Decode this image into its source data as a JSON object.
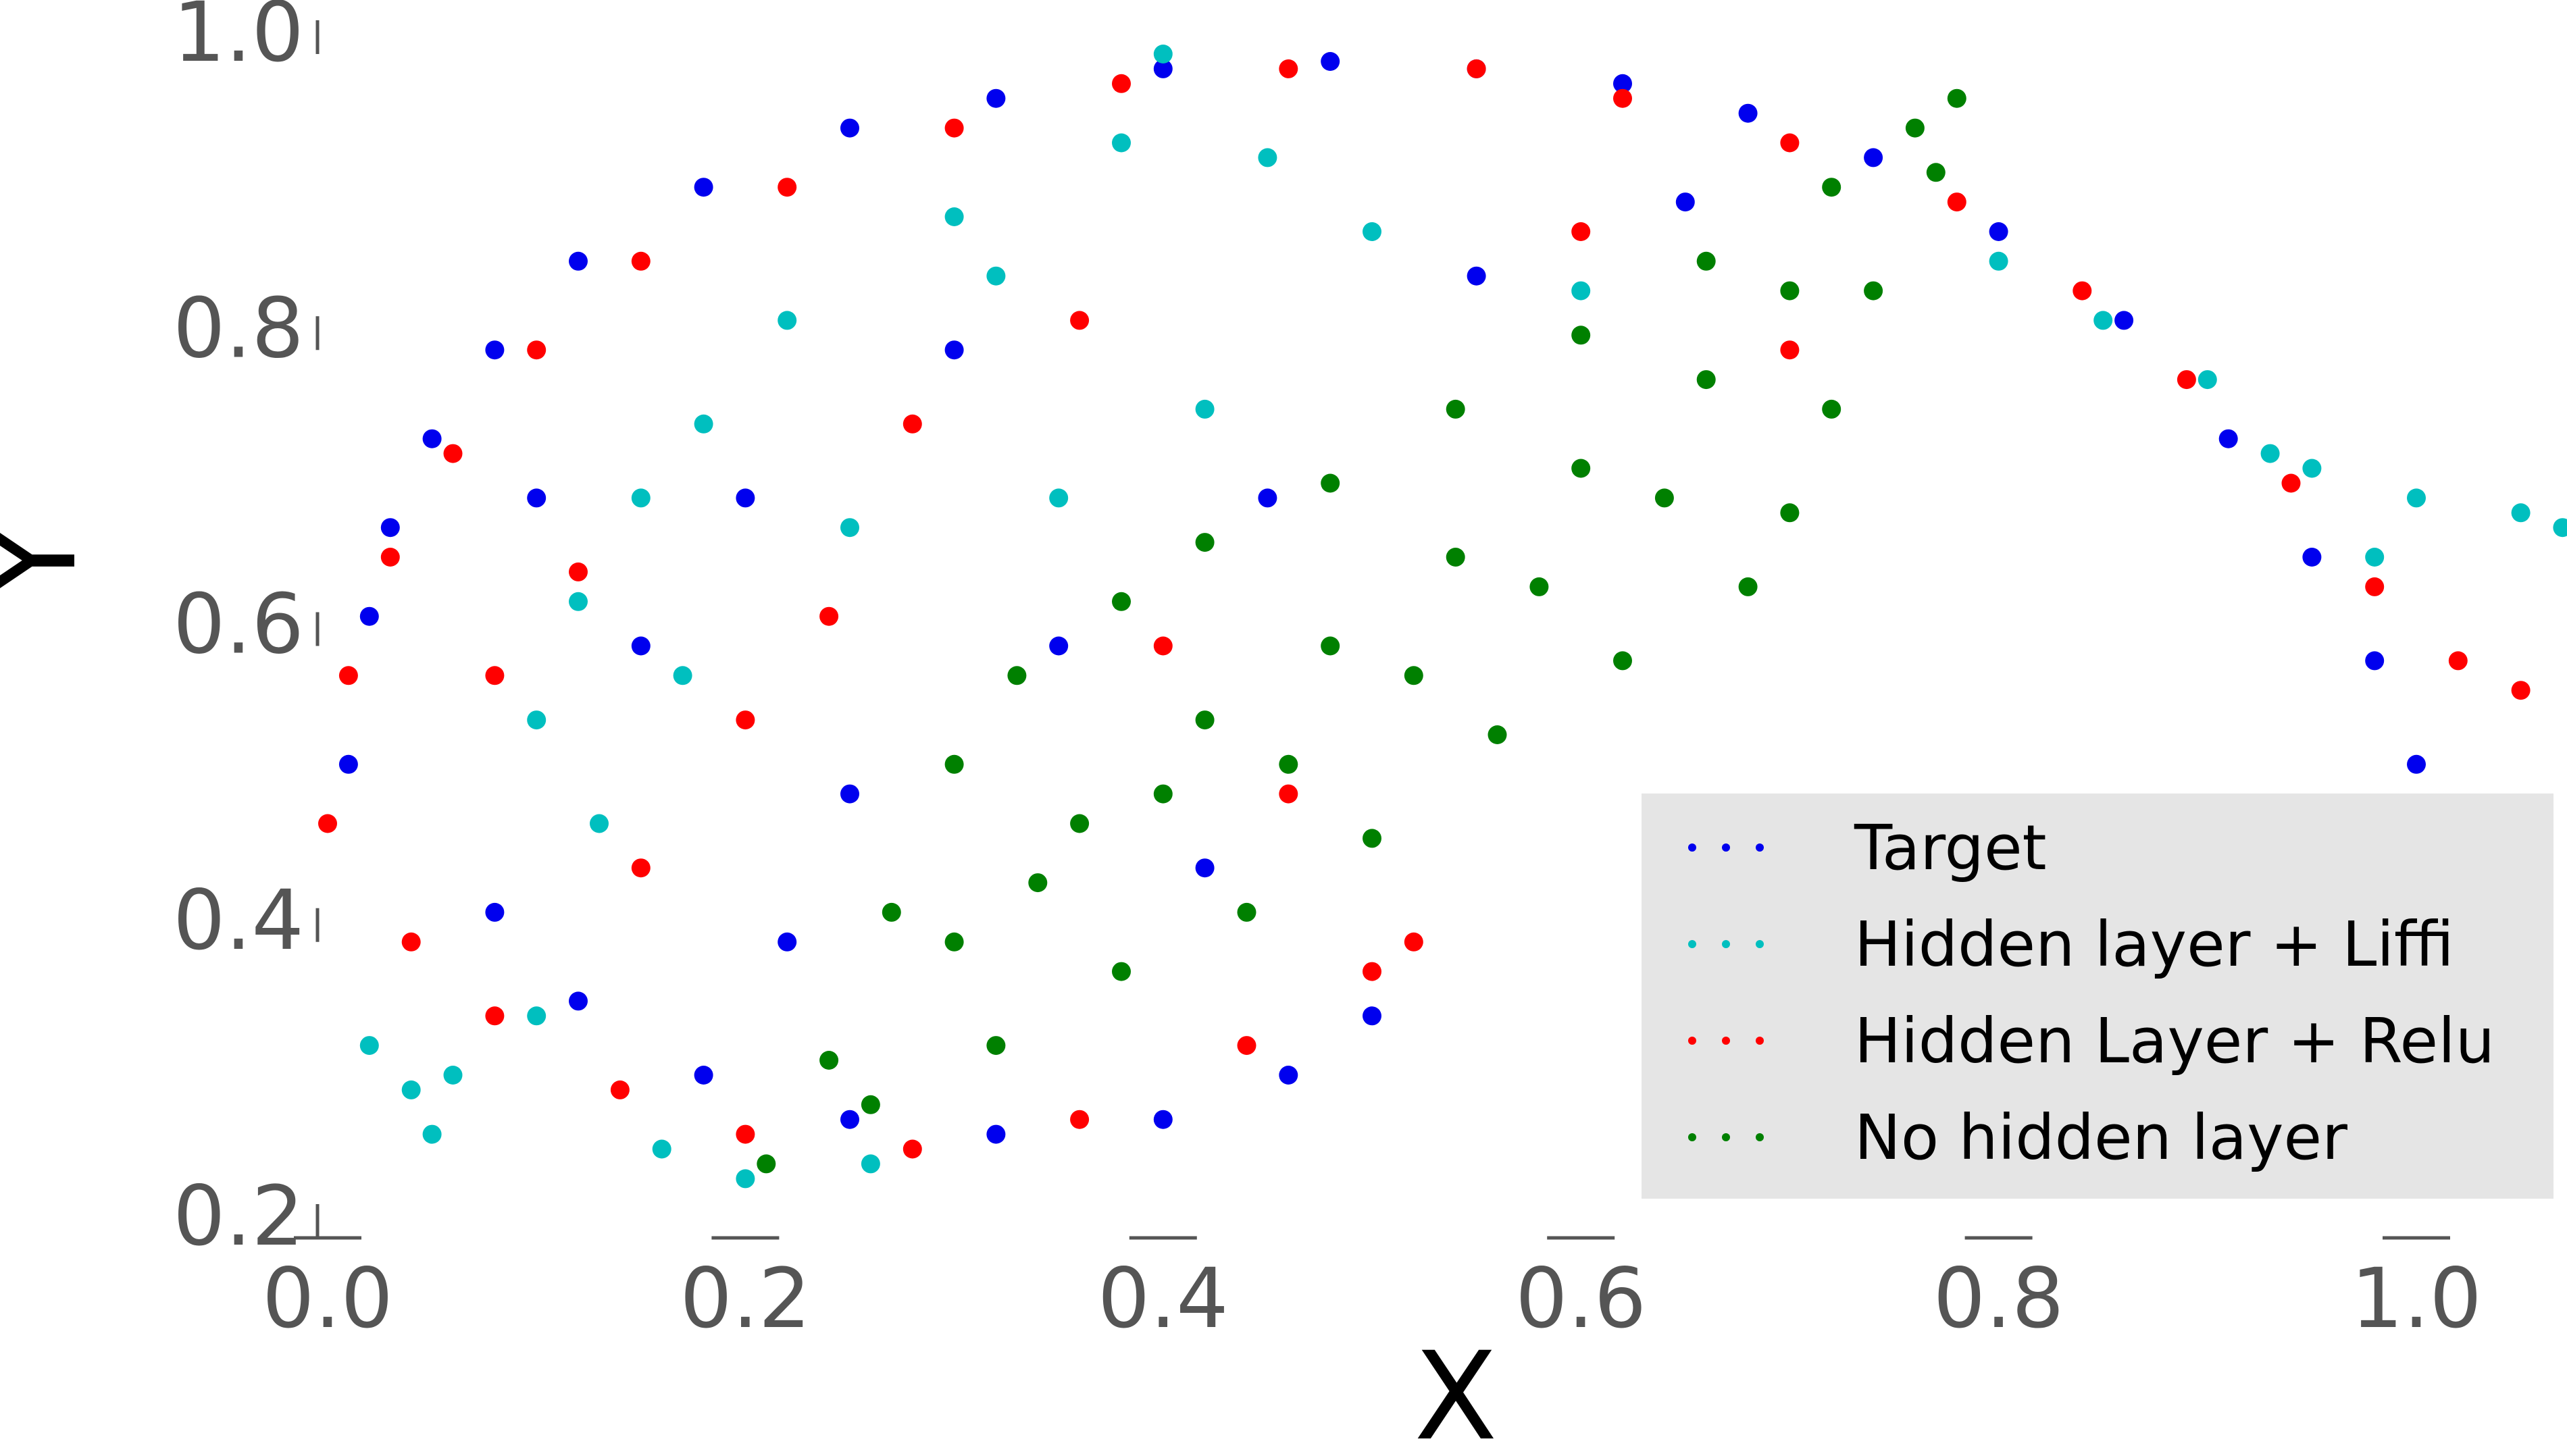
{
  "chart_data": {
    "type": "scatter",
    "xlabel": "X",
    "ylabel": "Y",
    "xlim": [
      0.0,
      1.08
    ],
    "ylim": [
      0.2,
      1.0
    ],
    "x_ticks": [
      "0.0",
      "0.2",
      "0.4",
      "0.6",
      "0.8",
      "1.0"
    ],
    "y_ticks": [
      "0.2",
      "0.4",
      "0.6",
      "0.8",
      "1.0"
    ],
    "grid": false,
    "legend_position": "lower-right",
    "series": [
      {
        "name": "Target",
        "color": "#0000ee",
        "points": [
          [
            0.01,
            0.52
          ],
          [
            0.02,
            0.62
          ],
          [
            0.03,
            0.68
          ],
          [
            0.05,
            0.74
          ],
          [
            0.08,
            0.8
          ],
          [
            0.12,
            0.86
          ],
          [
            0.18,
            0.91
          ],
          [
            0.25,
            0.95
          ],
          [
            0.32,
            0.97
          ],
          [
            0.4,
            0.99
          ],
          [
            0.48,
            0.995
          ],
          [
            0.55,
            0.99
          ],
          [
            0.62,
            0.98
          ],
          [
            0.68,
            0.96
          ],
          [
            0.74,
            0.93
          ],
          [
            0.8,
            0.88
          ],
          [
            0.86,
            0.82
          ],
          [
            0.91,
            0.74
          ],
          [
            0.95,
            0.66
          ],
          [
            0.98,
            0.59
          ],
          [
            1.0,
            0.52
          ],
          [
            0.08,
            0.42
          ],
          [
            0.12,
            0.36
          ],
          [
            0.18,
            0.31
          ],
          [
            0.25,
            0.28
          ],
          [
            0.32,
            0.27
          ],
          [
            0.4,
            0.28
          ],
          [
            0.46,
            0.31
          ],
          [
            0.5,
            0.35
          ],
          [
            0.15,
            0.6
          ],
          [
            0.2,
            0.7
          ],
          [
            0.3,
            0.8
          ],
          [
            0.35,
            0.6
          ],
          [
            0.42,
            0.45
          ],
          [
            0.25,
            0.5
          ],
          [
            0.45,
            0.7
          ],
          [
            0.55,
            0.85
          ],
          [
            0.65,
            0.9
          ],
          [
            0.1,
            0.7
          ],
          [
            0.22,
            0.4
          ]
        ]
      },
      {
        "name": "Hidden layer + Liffi",
        "color": "#00bfbf",
        "points": [
          [
            0.02,
            0.33
          ],
          [
            0.04,
            0.3
          ],
          [
            0.05,
            0.27
          ],
          [
            0.06,
            0.31
          ],
          [
            0.1,
            0.55
          ],
          [
            0.12,
            0.63
          ],
          [
            0.15,
            0.7
          ],
          [
            0.18,
            0.75
          ],
          [
            0.22,
            0.82
          ],
          [
            0.3,
            0.89
          ],
          [
            0.38,
            0.94
          ],
          [
            0.4,
            1.0
          ],
          [
            0.45,
            0.93
          ],
          [
            0.5,
            0.88
          ],
          [
            0.6,
            0.84
          ],
          [
            0.8,
            0.86
          ],
          [
            0.85,
            0.82
          ],
          [
            0.9,
            0.78
          ],
          [
            0.95,
            0.72
          ],
          [
            1.0,
            0.7
          ],
          [
            1.05,
            0.69
          ],
          [
            1.07,
            0.68
          ],
          [
            0.16,
            0.26
          ],
          [
            0.2,
            0.24
          ],
          [
            0.26,
            0.25
          ],
          [
            0.1,
            0.35
          ],
          [
            0.13,
            0.48
          ],
          [
            0.17,
            0.58
          ],
          [
            0.25,
            0.68
          ],
          [
            0.35,
            0.7
          ],
          [
            0.42,
            0.76
          ],
          [
            0.32,
            0.85
          ],
          [
            0.98,
            0.66
          ],
          [
            0.93,
            0.73
          ]
        ]
      },
      {
        "name": "Hidden Layer + Relu",
        "color": "#ff0000",
        "points": [
          [
            0.0,
            0.48
          ],
          [
            0.01,
            0.58
          ],
          [
            0.03,
            0.66
          ],
          [
            0.06,
            0.73
          ],
          [
            0.1,
            0.8
          ],
          [
            0.15,
            0.86
          ],
          [
            0.22,
            0.91
          ],
          [
            0.3,
            0.95
          ],
          [
            0.38,
            0.98
          ],
          [
            0.46,
            0.99
          ],
          [
            0.55,
            0.99
          ],
          [
            0.62,
            0.97
          ],
          [
            0.7,
            0.94
          ],
          [
            0.78,
            0.9
          ],
          [
            0.84,
            0.84
          ],
          [
            0.89,
            0.78
          ],
          [
            0.94,
            0.71
          ],
          [
            0.98,
            0.64
          ],
          [
            1.02,
            0.59
          ],
          [
            1.05,
            0.57
          ],
          [
            0.04,
            0.4
          ],
          [
            0.08,
            0.35
          ],
          [
            0.14,
            0.3
          ],
          [
            0.2,
            0.27
          ],
          [
            0.28,
            0.26
          ],
          [
            0.36,
            0.28
          ],
          [
            0.44,
            0.33
          ],
          [
            0.5,
            0.38
          ],
          [
            0.52,
            0.4
          ],
          [
            0.46,
            0.5
          ],
          [
            0.12,
            0.65
          ],
          [
            0.2,
            0.55
          ],
          [
            0.28,
            0.75
          ],
          [
            0.36,
            0.82
          ],
          [
            0.4,
            0.6
          ],
          [
            0.15,
            0.45
          ],
          [
            0.6,
            0.88
          ],
          [
            0.7,
            0.8
          ],
          [
            0.24,
            0.62
          ],
          [
            0.08,
            0.58
          ]
        ]
      },
      {
        "name": "No hidden layer",
        "color": "#008000",
        "points": [
          [
            0.21,
            0.25
          ],
          [
            0.24,
            0.32
          ],
          [
            0.27,
            0.42
          ],
          [
            0.3,
            0.52
          ],
          [
            0.33,
            0.58
          ],
          [
            0.38,
            0.63
          ],
          [
            0.42,
            0.67
          ],
          [
            0.48,
            0.71
          ],
          [
            0.54,
            0.76
          ],
          [
            0.6,
            0.81
          ],
          [
            0.66,
            0.86
          ],
          [
            0.72,
            0.91
          ],
          [
            0.76,
            0.95
          ],
          [
            0.78,
            0.97
          ],
          [
            0.77,
            0.92
          ],
          [
            0.74,
            0.84
          ],
          [
            0.72,
            0.76
          ],
          [
            0.7,
            0.69
          ],
          [
            0.68,
            0.64
          ],
          [
            0.62,
            0.59
          ],
          [
            0.56,
            0.54
          ],
          [
            0.5,
            0.47
          ],
          [
            0.44,
            0.42
          ],
          [
            0.38,
            0.38
          ],
          [
            0.32,
            0.33
          ],
          [
            0.26,
            0.29
          ],
          [
            0.3,
            0.4
          ],
          [
            0.36,
            0.48
          ],
          [
            0.42,
            0.55
          ],
          [
            0.48,
            0.6
          ],
          [
            0.54,
            0.66
          ],
          [
            0.6,
            0.72
          ],
          [
            0.66,
            0.78
          ],
          [
            0.7,
            0.84
          ],
          [
            0.4,
            0.5
          ],
          [
            0.46,
            0.52
          ],
          [
            0.52,
            0.58
          ],
          [
            0.58,
            0.64
          ],
          [
            0.64,
            0.7
          ],
          [
            0.34,
            0.44
          ]
        ]
      }
    ]
  }
}
